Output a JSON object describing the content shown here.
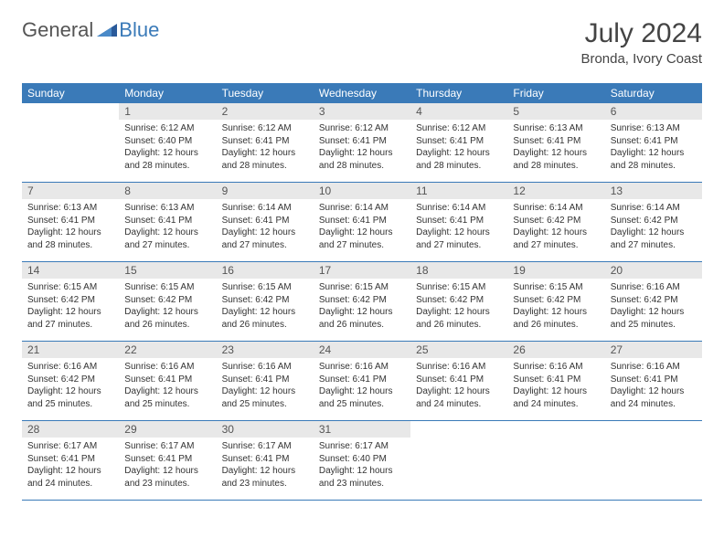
{
  "logo": {
    "general": "General",
    "blue": "Blue"
  },
  "title": "July 2024",
  "location": "Bronda, Ivory Coast",
  "weekdays": [
    "Sunday",
    "Monday",
    "Tuesday",
    "Wednesday",
    "Thursday",
    "Friday",
    "Saturday"
  ],
  "colors": {
    "header_bg": "#3a7ab8",
    "daynum_bg": "#e8e8e8",
    "row_border": "#3a7ab8",
    "text": "#333333"
  },
  "weeks": [
    [
      {
        "n": "",
        "sr": "",
        "ss": "",
        "dl": ""
      },
      {
        "n": "1",
        "sr": "Sunrise: 6:12 AM",
        "ss": "Sunset: 6:40 PM",
        "dl": "Daylight: 12 hours and 28 minutes."
      },
      {
        "n": "2",
        "sr": "Sunrise: 6:12 AM",
        "ss": "Sunset: 6:41 PM",
        "dl": "Daylight: 12 hours and 28 minutes."
      },
      {
        "n": "3",
        "sr": "Sunrise: 6:12 AM",
        "ss": "Sunset: 6:41 PM",
        "dl": "Daylight: 12 hours and 28 minutes."
      },
      {
        "n": "4",
        "sr": "Sunrise: 6:12 AM",
        "ss": "Sunset: 6:41 PM",
        "dl": "Daylight: 12 hours and 28 minutes."
      },
      {
        "n": "5",
        "sr": "Sunrise: 6:13 AM",
        "ss": "Sunset: 6:41 PM",
        "dl": "Daylight: 12 hours and 28 minutes."
      },
      {
        "n": "6",
        "sr": "Sunrise: 6:13 AM",
        "ss": "Sunset: 6:41 PM",
        "dl": "Daylight: 12 hours and 28 minutes."
      }
    ],
    [
      {
        "n": "7",
        "sr": "Sunrise: 6:13 AM",
        "ss": "Sunset: 6:41 PM",
        "dl": "Daylight: 12 hours and 28 minutes."
      },
      {
        "n": "8",
        "sr": "Sunrise: 6:13 AM",
        "ss": "Sunset: 6:41 PM",
        "dl": "Daylight: 12 hours and 27 minutes."
      },
      {
        "n": "9",
        "sr": "Sunrise: 6:14 AM",
        "ss": "Sunset: 6:41 PM",
        "dl": "Daylight: 12 hours and 27 minutes."
      },
      {
        "n": "10",
        "sr": "Sunrise: 6:14 AM",
        "ss": "Sunset: 6:41 PM",
        "dl": "Daylight: 12 hours and 27 minutes."
      },
      {
        "n": "11",
        "sr": "Sunrise: 6:14 AM",
        "ss": "Sunset: 6:41 PM",
        "dl": "Daylight: 12 hours and 27 minutes."
      },
      {
        "n": "12",
        "sr": "Sunrise: 6:14 AM",
        "ss": "Sunset: 6:42 PM",
        "dl": "Daylight: 12 hours and 27 minutes."
      },
      {
        "n": "13",
        "sr": "Sunrise: 6:14 AM",
        "ss": "Sunset: 6:42 PM",
        "dl": "Daylight: 12 hours and 27 minutes."
      }
    ],
    [
      {
        "n": "14",
        "sr": "Sunrise: 6:15 AM",
        "ss": "Sunset: 6:42 PM",
        "dl": "Daylight: 12 hours and 27 minutes."
      },
      {
        "n": "15",
        "sr": "Sunrise: 6:15 AM",
        "ss": "Sunset: 6:42 PM",
        "dl": "Daylight: 12 hours and 26 minutes."
      },
      {
        "n": "16",
        "sr": "Sunrise: 6:15 AM",
        "ss": "Sunset: 6:42 PM",
        "dl": "Daylight: 12 hours and 26 minutes."
      },
      {
        "n": "17",
        "sr": "Sunrise: 6:15 AM",
        "ss": "Sunset: 6:42 PM",
        "dl": "Daylight: 12 hours and 26 minutes."
      },
      {
        "n": "18",
        "sr": "Sunrise: 6:15 AM",
        "ss": "Sunset: 6:42 PM",
        "dl": "Daylight: 12 hours and 26 minutes."
      },
      {
        "n": "19",
        "sr": "Sunrise: 6:15 AM",
        "ss": "Sunset: 6:42 PM",
        "dl": "Daylight: 12 hours and 26 minutes."
      },
      {
        "n": "20",
        "sr": "Sunrise: 6:16 AM",
        "ss": "Sunset: 6:42 PM",
        "dl": "Daylight: 12 hours and 25 minutes."
      }
    ],
    [
      {
        "n": "21",
        "sr": "Sunrise: 6:16 AM",
        "ss": "Sunset: 6:42 PM",
        "dl": "Daylight: 12 hours and 25 minutes."
      },
      {
        "n": "22",
        "sr": "Sunrise: 6:16 AM",
        "ss": "Sunset: 6:41 PM",
        "dl": "Daylight: 12 hours and 25 minutes."
      },
      {
        "n": "23",
        "sr": "Sunrise: 6:16 AM",
        "ss": "Sunset: 6:41 PM",
        "dl": "Daylight: 12 hours and 25 minutes."
      },
      {
        "n": "24",
        "sr": "Sunrise: 6:16 AM",
        "ss": "Sunset: 6:41 PM",
        "dl": "Daylight: 12 hours and 25 minutes."
      },
      {
        "n": "25",
        "sr": "Sunrise: 6:16 AM",
        "ss": "Sunset: 6:41 PM",
        "dl": "Daylight: 12 hours and 24 minutes."
      },
      {
        "n": "26",
        "sr": "Sunrise: 6:16 AM",
        "ss": "Sunset: 6:41 PM",
        "dl": "Daylight: 12 hours and 24 minutes."
      },
      {
        "n": "27",
        "sr": "Sunrise: 6:16 AM",
        "ss": "Sunset: 6:41 PM",
        "dl": "Daylight: 12 hours and 24 minutes."
      }
    ],
    [
      {
        "n": "28",
        "sr": "Sunrise: 6:17 AM",
        "ss": "Sunset: 6:41 PM",
        "dl": "Daylight: 12 hours and 24 minutes."
      },
      {
        "n": "29",
        "sr": "Sunrise: 6:17 AM",
        "ss": "Sunset: 6:41 PM",
        "dl": "Daylight: 12 hours and 23 minutes."
      },
      {
        "n": "30",
        "sr": "Sunrise: 6:17 AM",
        "ss": "Sunset: 6:41 PM",
        "dl": "Daylight: 12 hours and 23 minutes."
      },
      {
        "n": "31",
        "sr": "Sunrise: 6:17 AM",
        "ss": "Sunset: 6:40 PM",
        "dl": "Daylight: 12 hours and 23 minutes."
      },
      {
        "n": "",
        "sr": "",
        "ss": "",
        "dl": ""
      },
      {
        "n": "",
        "sr": "",
        "ss": "",
        "dl": ""
      },
      {
        "n": "",
        "sr": "",
        "ss": "",
        "dl": ""
      }
    ]
  ]
}
